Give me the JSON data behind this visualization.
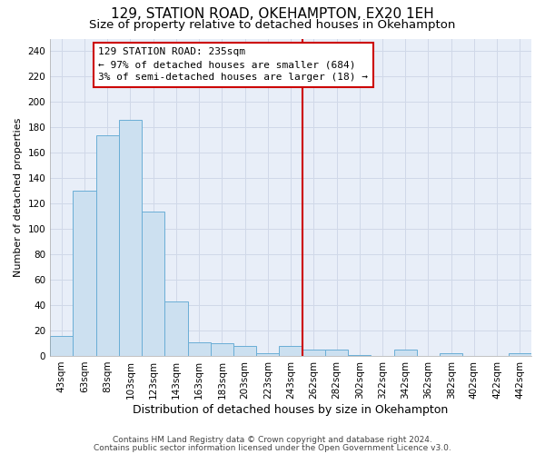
{
  "title": "129, STATION ROAD, OKEHAMPTON, EX20 1EH",
  "subtitle": "Size of property relative to detached houses in Okehampton",
  "xlabel": "Distribution of detached houses by size in Okehampton",
  "ylabel": "Number of detached properties",
  "footer_line1": "Contains HM Land Registry data © Crown copyright and database right 2024.",
  "footer_line2": "Contains public sector information licensed under the Open Government Licence v3.0.",
  "bar_labels": [
    "43sqm",
    "63sqm",
    "83sqm",
    "103sqm",
    "123sqm",
    "143sqm",
    "163sqm",
    "183sqm",
    "203sqm",
    "223sqm",
    "243sqm",
    "262sqm",
    "282sqm",
    "302sqm",
    "322sqm",
    "342sqm",
    "362sqm",
    "382sqm",
    "402sqm",
    "422sqm",
    "442sqm"
  ],
  "bar_heights": [
    16,
    130,
    174,
    186,
    114,
    43,
    11,
    10,
    8,
    2,
    8,
    5,
    5,
    1,
    0,
    5,
    0,
    2,
    0,
    0,
    2
  ],
  "bar_color": "#cce0f0",
  "bar_edge_color": "#6aaed6",
  "vline_x_index": 10,
  "vline_color": "#cc0000",
  "annotation_text_line1": "129 STATION ROAD: 235sqm",
  "annotation_text_line2": "← 97% of detached houses are smaller (684)",
  "annotation_text_line3": "3% of semi-detached houses are larger (18) →",
  "ylim": [
    0,
    250
  ],
  "yticks": [
    0,
    20,
    40,
    60,
    80,
    100,
    120,
    140,
    160,
    180,
    200,
    220,
    240
  ],
  "grid_color": "#d0d8e8",
  "plot_bg_color": "#e8eef8",
  "fig_bg_color": "#ffffff",
  "title_fontsize": 11,
  "subtitle_fontsize": 9.5,
  "xlabel_fontsize": 9,
  "ylabel_fontsize": 8,
  "tick_fontsize": 7.5,
  "footer_fontsize": 6.5,
  "annotation_fontsize": 8
}
